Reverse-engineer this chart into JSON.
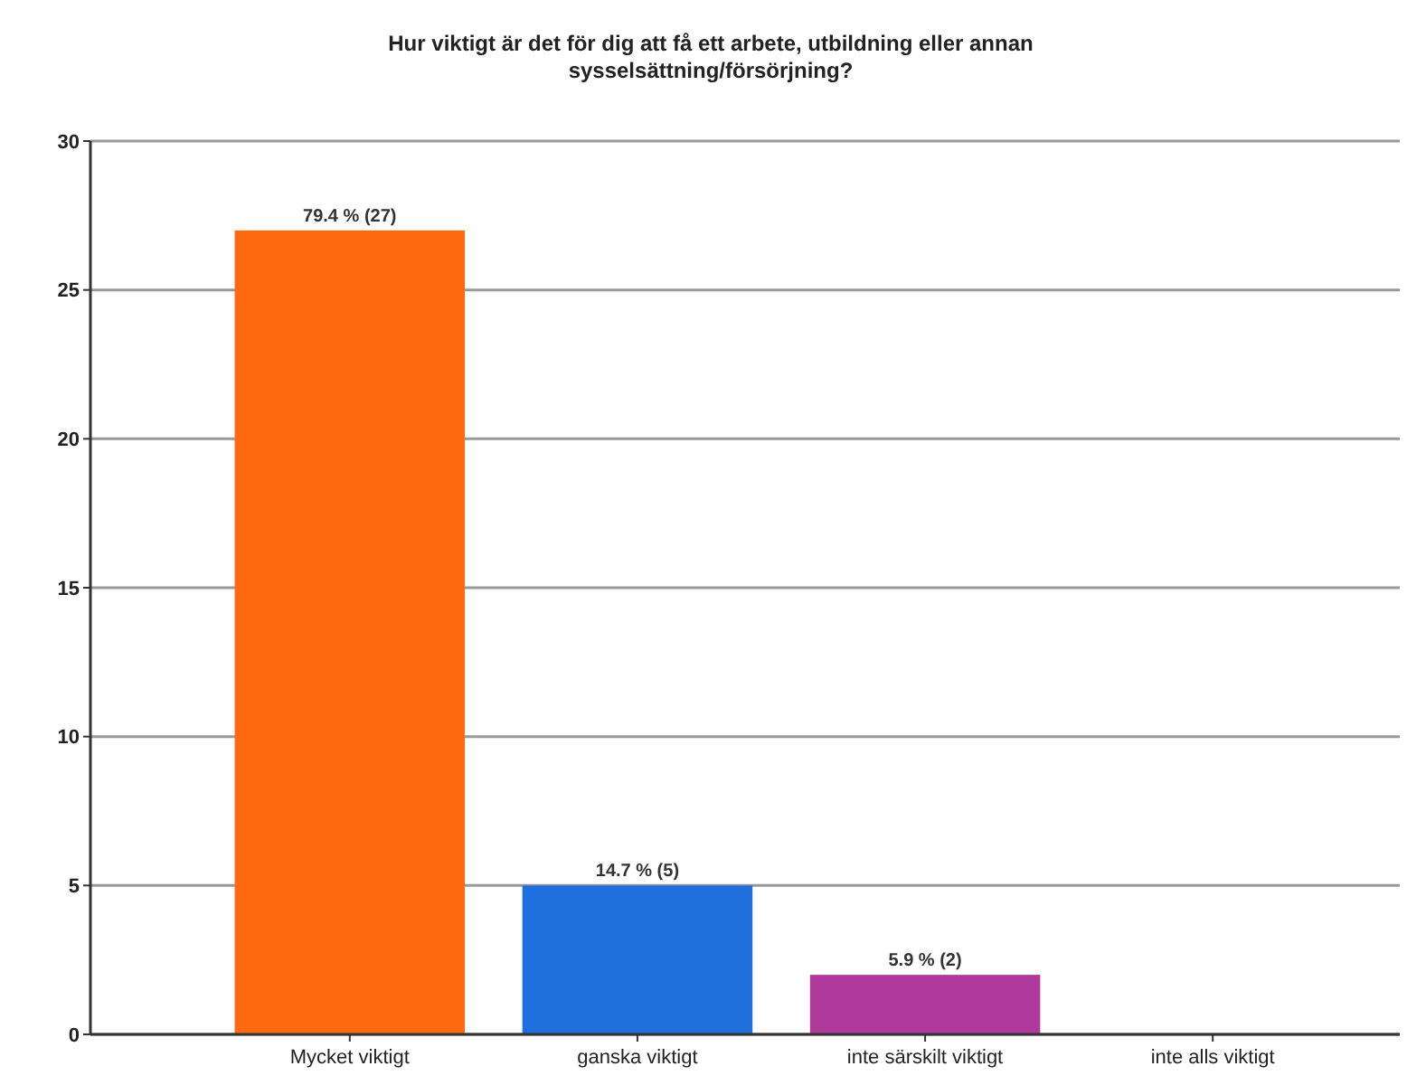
{
  "chart_data": {
    "type": "bar",
    "title": "Hur viktigt är det för dig att få ett arbete, utbildning eller annan sysselsättning/försörjning?",
    "categories": [
      "Mycket viktigt",
      "ganska viktigt",
      "inte särskilt viktigt",
      "inte alls viktigt"
    ],
    "values": [
      27,
      5,
      2,
      0
    ],
    "colors": [
      "#ff6a10",
      "#1f6fdc",
      "#b03a9c",
      "#3a9a3a"
    ],
    "value_labels": [
      "79.4 % (27)",
      "14.7 % (5)",
      "5.9 % (2)",
      null
    ],
    "ylim": [
      0,
      30
    ],
    "yticks": [
      0,
      5,
      10,
      15,
      20,
      25,
      30
    ],
    "grid": "y"
  }
}
